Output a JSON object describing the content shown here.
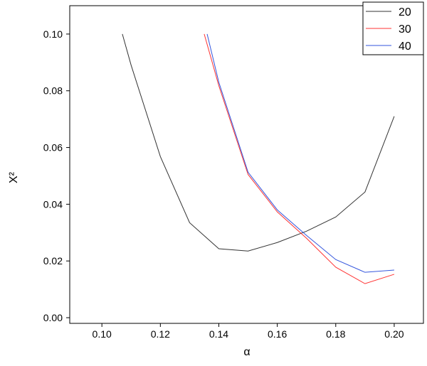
{
  "chart_data": {
    "type": "line",
    "x_label": "α",
    "y_label": "X²",
    "xlim": [
      0.089,
      0.21
    ],
    "ylim": [
      -0.002,
      0.11
    ],
    "xticks": [
      {
        "value": 0.1,
        "label": "0.10"
      },
      {
        "value": 0.12,
        "label": "0.12"
      },
      {
        "value": 0.14,
        "label": "0.14"
      },
      {
        "value": 0.16,
        "label": "0.16"
      },
      {
        "value": 0.18,
        "label": "0.18"
      },
      {
        "value": 0.2,
        "label": "0.20"
      }
    ],
    "yticks": [
      {
        "value": 0,
        "label": "0.00"
      },
      {
        "value": 0.02,
        "label": "0.02"
      },
      {
        "value": 0.04,
        "label": "0.04"
      },
      {
        "value": 0.06,
        "label": "0.06"
      },
      {
        "value": 0.08,
        "label": "0.08"
      },
      {
        "value": 0.1,
        "label": "0.10"
      }
    ],
    "legend": "top-right",
    "series": [
      {
        "name": "20",
        "color": "#333333",
        "x": [
          0.107,
          0.11,
          0.12,
          0.13,
          0.14,
          0.15,
          0.16,
          0.17,
          0.18,
          0.19,
          0.2
        ],
        "values": [
          0.1,
          0.089,
          0.0568,
          0.0335,
          0.0243,
          0.0235,
          0.0265,
          0.0305,
          0.0355,
          0.0443,
          0.071
        ]
      },
      {
        "name": "30",
        "color": "#ff3333",
        "x": [
          0.135,
          0.14,
          0.15,
          0.16,
          0.17,
          0.18,
          0.19,
          0.2
        ],
        "values": [
          0.1,
          0.0818,
          0.0505,
          0.0373,
          0.028,
          0.0178,
          0.012,
          0.0153
        ]
      },
      {
        "name": "40",
        "color": "#3355dd",
        "x": [
          0.136,
          0.14,
          0.15,
          0.16,
          0.17,
          0.18,
          0.19,
          0.2
        ],
        "values": [
          0.1,
          0.083,
          0.0513,
          0.038,
          0.029,
          0.0205,
          0.016,
          0.0168
        ]
      }
    ]
  }
}
